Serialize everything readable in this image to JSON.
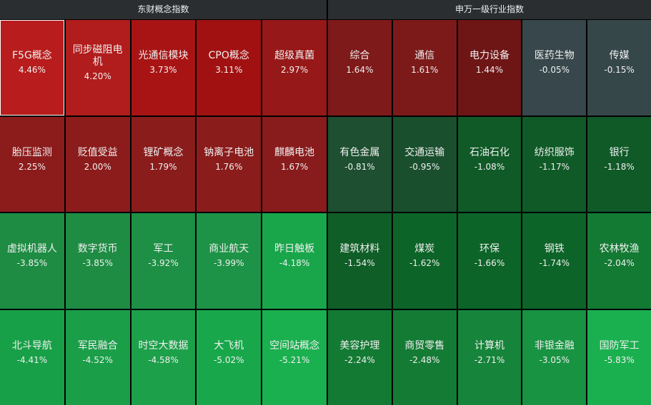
{
  "panels": [
    {
      "title": "东财概念指数",
      "tiles": [
        {
          "name": "F5G概念",
          "change": "4.46%",
          "color": "#b81c1c"
        },
        {
          "name": "同步磁阻电机",
          "change": "4.20%",
          "color": "#b11c1c"
        },
        {
          "name": "光通信模块",
          "change": "3.73%",
          "color": "#a81414"
        },
        {
          "name": "CPO概念",
          "change": "3.11%",
          "color": "#a11111"
        },
        {
          "name": "超级真菌",
          "change": "2.97%",
          "color": "#971818"
        },
        {
          "name": "胎压监测",
          "change": "2.25%",
          "color": "#8c1c1c"
        },
        {
          "name": "贬值受益",
          "change": "2.00%",
          "color": "#8c1c1c"
        },
        {
          "name": "锂矿概念",
          "change": "1.79%",
          "color": "#8a1c1c"
        },
        {
          "name": "钠离子电池",
          "change": "1.76%",
          "color": "#8a1c1c"
        },
        {
          "name": "麒麟电池",
          "change": "1.67%",
          "color": "#881c1c"
        },
        {
          "name": "虚拟机器人",
          "change": "-3.85%",
          "color": "#1e8c43"
        },
        {
          "name": "数字货币",
          "change": "-3.85%",
          "color": "#1e8c43"
        },
        {
          "name": "军工",
          "change": "-3.92%",
          "color": "#1d9045"
        },
        {
          "name": "商业航天",
          "change": "-3.99%",
          "color": "#1c9346"
        },
        {
          "name": "昨日触板",
          "change": "-4.18%",
          "color": "#19a64a"
        },
        {
          "name": "北斗导航",
          "change": "-4.41%",
          "color": "#17a047"
        },
        {
          "name": "军民融合",
          "change": "-4.52%",
          "color": "#1a9e48"
        },
        {
          "name": "时空大数据",
          "change": "-4.58%",
          "color": "#1ca04a"
        },
        {
          "name": "大飞机",
          "change": "-5.02%",
          "color": "#18a84b"
        },
        {
          "name": "空间站概念",
          "change": "-5.21%",
          "color": "#1ab04f"
        }
      ]
    },
    {
      "title": "申万一级行业指数",
      "tiles": [
        {
          "name": "综合",
          "change": "1.64%",
          "color": "#7e1a1a"
        },
        {
          "name": "通信",
          "change": "1.61%",
          "color": "#7c1a1a"
        },
        {
          "name": "电力设备",
          "change": "1.44%",
          "color": "#6e1616"
        },
        {
          "name": "医药生物",
          "change": "-0.05%",
          "color": "#37474b"
        },
        {
          "name": "传媒",
          "change": "-0.15%",
          "color": "#36474a"
        },
        {
          "name": "有色金属",
          "change": "-0.81%",
          "color": "#1d4f30"
        },
        {
          "name": "交通运输",
          "change": "-0.95%",
          "color": "#1a4f2e"
        },
        {
          "name": "石油石化",
          "change": "-1.08%",
          "color": "#105a28"
        },
        {
          "name": "纺织服饰",
          "change": "-1.17%",
          "color": "#105a28"
        },
        {
          "name": "银行",
          "change": "-1.18%",
          "color": "#105a28"
        },
        {
          "name": "建筑材料",
          "change": "-1.54%",
          "color": "#0f5e27"
        },
        {
          "name": "煤炭",
          "change": "-1.62%",
          "color": "#0d6428"
        },
        {
          "name": "环保",
          "change": "-1.66%",
          "color": "#0d6428"
        },
        {
          "name": "钢铁",
          "change": "-1.74%",
          "color": "#0d6428"
        },
        {
          "name": "农林牧渔",
          "change": "-2.04%",
          "color": "#137a33"
        },
        {
          "name": "美容护理",
          "change": "-2.24%",
          "color": "#137a33"
        },
        {
          "name": "商贸零售",
          "change": "-2.48%",
          "color": "#147b34"
        },
        {
          "name": "计算机",
          "change": "-2.71%",
          "color": "#16843a"
        },
        {
          "name": "非银金融",
          "change": "-3.05%",
          "color": "#179342"
        },
        {
          "name": "国防军工",
          "change": "-5.83%",
          "color": "#1ab04f"
        }
      ]
    }
  ]
}
